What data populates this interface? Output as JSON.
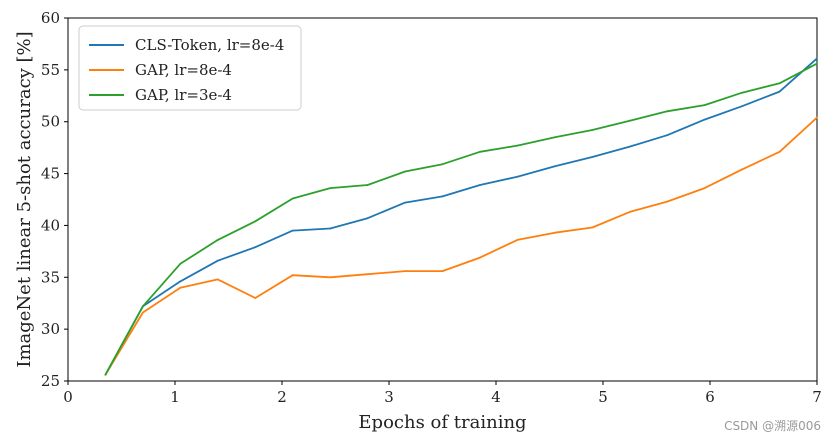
{
  "chart_data": {
    "type": "line",
    "xlabel": "Epochs of training",
    "ylabel": "ImageNet linear 5-shot accuracy [%]",
    "xlim": [
      0,
      7
    ],
    "ylim": [
      25,
      60
    ],
    "xticks": [
      0,
      1,
      2,
      3,
      4,
      5,
      6,
      7
    ],
    "yticks": [
      25,
      30,
      35,
      40,
      45,
      50,
      55,
      60
    ],
    "legend_position": "top-left",
    "grid": false,
    "series": [
      {
        "name": "CLS-Token, lr=8e-4",
        "color": "#1f77b4",
        "x": [
          0.35,
          0.7,
          1.05,
          1.4,
          1.75,
          2.1,
          2.45,
          2.8,
          3.15,
          3.5,
          3.85,
          4.2,
          4.55,
          4.9,
          5.25,
          5.6,
          5.95,
          6.3,
          6.65,
          7.0
        ],
        "y": [
          25.6,
          32.2,
          34.6,
          36.6,
          37.9,
          39.5,
          39.7,
          40.7,
          42.2,
          42.8,
          43.9,
          44.7,
          45.7,
          46.6,
          47.6,
          48.7,
          50.2,
          51.5,
          52.9,
          56.1
        ]
      },
      {
        "name": "GAP, lr=8e-4",
        "color": "#ff7f0e",
        "x": [
          0.35,
          0.7,
          1.05,
          1.4,
          1.75,
          2.1,
          2.45,
          2.8,
          3.15,
          3.5,
          3.85,
          4.2,
          4.55,
          4.9,
          5.25,
          5.6,
          5.95,
          6.3,
          6.65,
          7.0
        ],
        "y": [
          25.6,
          31.6,
          34.0,
          34.8,
          33.0,
          35.2,
          35.0,
          35.3,
          35.6,
          35.6,
          36.9,
          38.6,
          39.3,
          39.8,
          41.3,
          42.3,
          43.6,
          45.4,
          47.1,
          50.4
        ]
      },
      {
        "name": "GAP, lr=3e-4",
        "color": "#2ca02c",
        "x": [
          0.35,
          0.7,
          1.05,
          1.4,
          1.75,
          2.1,
          2.45,
          2.8,
          3.15,
          3.5,
          3.85,
          4.2,
          4.55,
          4.9,
          5.25,
          5.6,
          5.95,
          6.3,
          6.65,
          7.0
        ],
        "y": [
          25.6,
          32.2,
          36.3,
          38.6,
          40.4,
          42.6,
          43.6,
          43.9,
          45.2,
          45.9,
          47.1,
          47.7,
          48.5,
          49.2,
          50.1,
          51.0,
          51.6,
          52.8,
          53.7,
          55.6
        ]
      }
    ]
  },
  "watermark": "CSDN @溯源006"
}
